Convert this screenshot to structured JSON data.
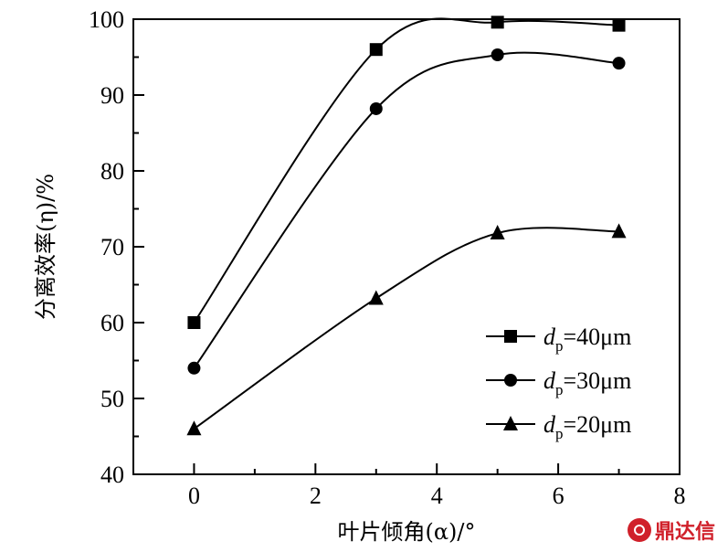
{
  "chart_data": {
    "type": "line",
    "xlabel": "叶片倾角(α)/°",
    "ylabel": "分离效率(η)/%",
    "xlim": [
      -1,
      8
    ],
    "ylim": [
      40,
      100
    ],
    "xticks": [
      0,
      2,
      4,
      6,
      8
    ],
    "yticks": [
      40,
      50,
      60,
      70,
      80,
      90,
      100
    ],
    "x": [
      0,
      3,
      5,
      7
    ],
    "legend_position": "lower-right",
    "series": [
      {
        "name": "dp=40μm",
        "label_main": "d",
        "label_sub": "p",
        "label_rest": "=40μm",
        "marker": "square",
        "values": [
          60.0,
          96.0,
          99.6,
          99.2
        ]
      },
      {
        "name": "dp=30μm",
        "label_main": "d",
        "label_sub": "p",
        "label_rest": "=30μm",
        "marker": "circle",
        "values": [
          54.0,
          88.2,
          95.3,
          94.2
        ]
      },
      {
        "name": "dp=20μm",
        "label_main": "d",
        "label_sub": "p",
        "label_rest": "=20μm",
        "marker": "triangle",
        "values": [
          46.0,
          63.2,
          71.8,
          72.0
        ]
      }
    ],
    "grid": false
  },
  "watermark": {
    "text": "鼎达信"
  }
}
